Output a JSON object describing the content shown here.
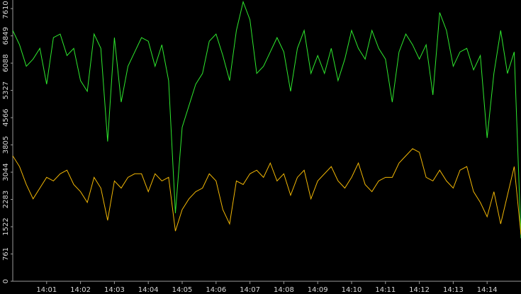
{
  "chart_data": {
    "type": "line",
    "x": [
      0,
      0.2,
      0.4,
      0.6,
      0.8,
      1,
      1.2,
      1.4,
      1.6,
      1.8,
      2,
      2.2,
      2.4,
      2.6,
      2.8,
      3,
      3.2,
      3.4,
      3.6,
      3.8,
      4,
      4.2,
      4.4,
      4.6,
      4.8,
      5,
      5.2,
      5.4,
      5.6,
      5.8,
      6,
      6.2,
      6.4,
      6.6,
      6.8,
      7,
      7.2,
      7.4,
      7.6,
      7.8,
      8,
      8.2,
      8.4,
      8.6,
      8.8,
      9,
      9.2,
      9.4,
      9.6,
      9.8,
      10,
      10.2,
      10.4,
      10.6,
      10.8,
      11,
      11.2,
      11.4,
      11.6,
      11.8,
      12,
      12.2,
      12.4,
      12.6,
      12.8,
      13,
      13.2,
      13.4,
      13.6,
      13.8,
      14,
      14.2,
      14.4,
      14.6,
      14.8,
      15
    ],
    "series": [
      {
        "color": "#2ee82e",
        "values": [
          7000,
          6600,
          6000,
          6200,
          6500,
          5500,
          6800,
          6900,
          6300,
          6500,
          5600,
          5300,
          6900,
          6500,
          3900,
          6800,
          5000,
          6000,
          6400,
          6800,
          6700,
          6000,
          6600,
          5600,
          1900,
          4300,
          4900,
          5500,
          5800,
          6700,
          6900,
          6300,
          5600,
          7000,
          7800,
          7300,
          5800,
          6000,
          6400,
          6800,
          6400,
          5300,
          6500,
          7000,
          5800,
          6300,
          5800,
          6500,
          5600,
          6200,
          7000,
          6500,
          6200,
          7000,
          6500,
          6200,
          5000,
          6400,
          6900,
          6600,
          6200,
          6600,
          5200,
          7500,
          7000,
          6000,
          6400,
          6500,
          5900,
          6300,
          4000,
          5800,
          7000,
          5800,
          6400,
          1200
        ]
      },
      {
        "color": "#f2b705",
        "values": [
          3500,
          3200,
          2700,
          2300,
          2600,
          2900,
          2800,
          3000,
          3100,
          2700,
          2500,
          2200,
          2900,
          2600,
          1700,
          2800,
          2600,
          2900,
          3000,
          3000,
          2500,
          3000,
          2800,
          2900,
          1400,
          2000,
          2300,
          2500,
          2600,
          3000,
          2800,
          2000,
          1600,
          2800,
          2700,
          3000,
          3100,
          2900,
          3300,
          2800,
          3000,
          2400,
          2900,
          3100,
          2300,
          2800,
          3000,
          3200,
          2800,
          2600,
          2900,
          3300,
          2700,
          2500,
          2800,
          2900,
          2900,
          3300,
          3500,
          3700,
          3600,
          2900,
          2800,
          3100,
          2800,
          2600,
          3100,
          3200,
          2500,
          2200,
          1800,
          2500,
          1600,
          2400,
          3200,
          1300
        ]
      }
    ],
    "xlim": [
      0,
      15
    ],
    "xticks": [
      {
        "value": 1,
        "label": "14:01"
      },
      {
        "value": 2,
        "label": "14:02"
      },
      {
        "value": 3,
        "label": "14:03"
      },
      {
        "value": 4,
        "label": "14:04"
      },
      {
        "value": 5,
        "label": "14:05"
      },
      {
        "value": 6,
        "label": "14:06"
      },
      {
        "value": 7,
        "label": "14:07"
      },
      {
        "value": 8,
        "label": "14:08"
      },
      {
        "value": 9,
        "label": "14:09"
      },
      {
        "value": 10,
        "label": "14:10"
      },
      {
        "value": 11,
        "label": "14:11"
      },
      {
        "value": 12,
        "label": "14:12"
      },
      {
        "value": 13,
        "label": "14:13"
      },
      {
        "value": 14,
        "label": "14:14"
      }
    ],
    "ylim": [
      0,
      7850
    ],
    "yticks": [
      0,
      761,
      1522,
      2283,
      3044,
      3805,
      4566,
      5327,
      6088,
      6849,
      7610
    ],
    "grid": false
  }
}
